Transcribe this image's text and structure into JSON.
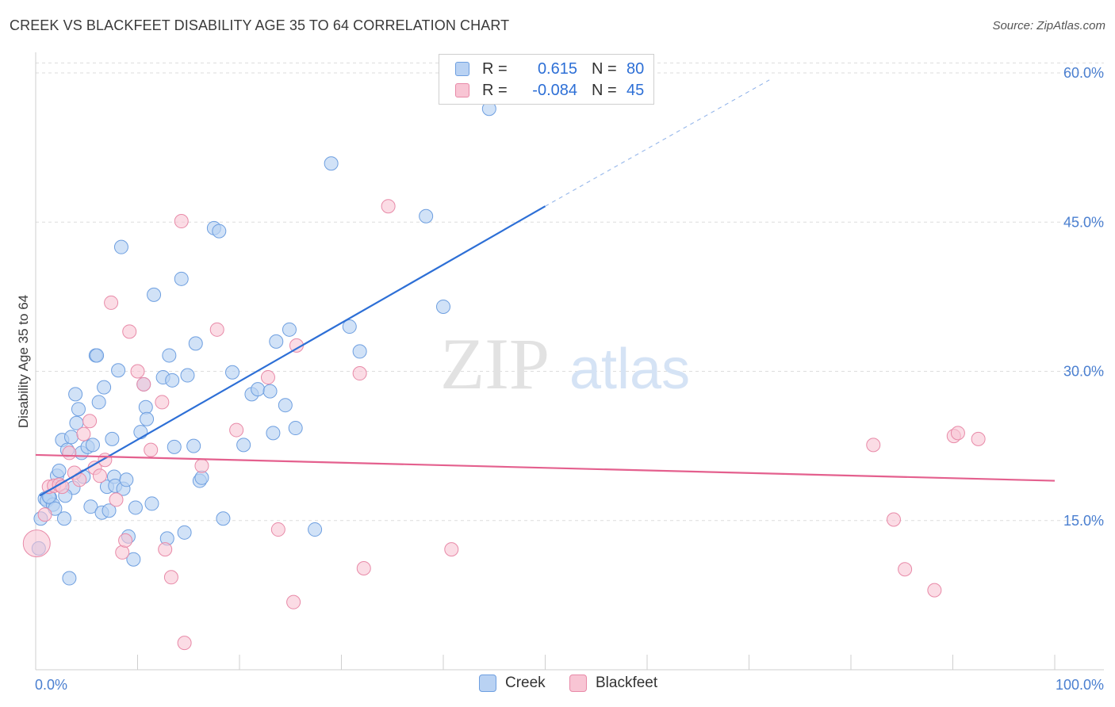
{
  "title": "CREEK VS BLACKFEET DISABILITY AGE 35 TO 64 CORRELATION CHART",
  "source": "Source: ZipAtlas.com",
  "watermark": {
    "zip": "ZIP",
    "atlas": "atlas"
  },
  "legend": {
    "rows": [
      {
        "r_label": "R =",
        "r_value": "0.615",
        "n_label": "N =",
        "n_value": "80"
      },
      {
        "r_label": "R =",
        "r_value": "-0.084",
        "n_label": "N =",
        "n_value": "45"
      }
    ]
  },
  "bottom_legend": [
    "Creek",
    "Blackfeet"
  ],
  "colors": {
    "creek_fill": "#b9d2f3",
    "creek_stroke": "#6e9fe0",
    "creek_line": "#2d6fd6",
    "blackfeet_fill": "#f8c5d4",
    "blackfeet_stroke": "#e88aa8",
    "blackfeet_line": "#e4608e",
    "tick_label": "#4a7fd0",
    "grid": "#dddddd"
  },
  "chart_data": {
    "type": "scatter",
    "title": "CREEK VS BLACKFEET DISABILITY AGE 35 TO 64 CORRELATION CHART",
    "xlabel": "",
    "ylabel": "Disability Age 35 to 64",
    "x_tick_labels": [
      "0.0%",
      "100.0%"
    ],
    "y_tick_labels": [
      "15.0%",
      "30.0%",
      "45.0%",
      "60.0%"
    ],
    "y_ticks": [
      15,
      30,
      45,
      60
    ],
    "xlim": [
      0,
      100
    ],
    "ylim": [
      0,
      61
    ],
    "grid": true,
    "series": [
      {
        "name": "Creek",
        "r": 0.615,
        "n": 80,
        "trend": {
          "x0": 0.4,
          "y0": 17.5,
          "x1": 50,
          "y1": 46.6,
          "dash_to_x": 72,
          "dash_to_y": 59.3
        },
        "points": [
          [
            0.3,
            12.2
          ],
          [
            0.5,
            15.2
          ],
          [
            0.9,
            17.2
          ],
          [
            1.1,
            17.0
          ],
          [
            1.4,
            17.3
          ],
          [
            1.7,
            16.6
          ],
          [
            1.9,
            16.2
          ],
          [
            2.1,
            19.5
          ],
          [
            2.3,
            20.0
          ],
          [
            2.6,
            23.1
          ],
          [
            2.8,
            15.2
          ],
          [
            3.1,
            22.1
          ],
          [
            3.3,
            9.2
          ],
          [
            3.5,
            23.4
          ],
          [
            3.7,
            18.3
          ],
          [
            3.9,
            27.7
          ],
          [
            4.0,
            24.8
          ],
          [
            4.2,
            26.2
          ],
          [
            4.5,
            21.8
          ],
          [
            4.7,
            19.4
          ],
          [
            5.1,
            22.4
          ],
          [
            5.4,
            16.4
          ],
          [
            5.6,
            22.6
          ],
          [
            5.9,
            31.6
          ],
          [
            6.2,
            26.9
          ],
          [
            6.5,
            15.8
          ],
          [
            6.7,
            28.4
          ],
          [
            7.0,
            18.4
          ],
          [
            7.2,
            16.0
          ],
          [
            7.5,
            23.2
          ],
          [
            7.7,
            19.4
          ],
          [
            7.8,
            18.5
          ],
          [
            8.1,
            30.1
          ],
          [
            8.4,
            42.5
          ],
          [
            8.6,
            18.2
          ],
          [
            8.9,
            19.1
          ],
          [
            9.1,
            13.4
          ],
          [
            9.6,
            11.1
          ],
          [
            9.8,
            16.3
          ],
          [
            10.3,
            23.9
          ],
          [
            10.6,
            28.7
          ],
          [
            10.8,
            26.4
          ],
          [
            10.9,
            25.2
          ],
          [
            11.4,
            16.7
          ],
          [
            11.6,
            37.7
          ],
          [
            12.5,
            29.4
          ],
          [
            12.9,
            13.2
          ],
          [
            13.1,
            31.6
          ],
          [
            13.6,
            22.4
          ],
          [
            14.3,
            39.3
          ],
          [
            14.6,
            13.8
          ],
          [
            14.9,
            29.6
          ],
          [
            15.5,
            22.5
          ],
          [
            15.7,
            32.8
          ],
          [
            16.1,
            19.0
          ],
          [
            16.3,
            19.3
          ],
          [
            17.5,
            44.4
          ],
          [
            18.0,
            44.1
          ],
          [
            18.4,
            15.2
          ],
          [
            19.3,
            29.9
          ],
          [
            20.4,
            22.6
          ],
          [
            21.2,
            27.7
          ],
          [
            21.8,
            28.2
          ],
          [
            23.0,
            28.0
          ],
          [
            23.3,
            23.8
          ],
          [
            23.6,
            33.0
          ],
          [
            24.5,
            26.6
          ],
          [
            24.9,
            34.2
          ],
          [
            25.5,
            24.3
          ],
          [
            27.4,
            14.1
          ],
          [
            29.0,
            50.9
          ],
          [
            30.8,
            34.5
          ],
          [
            31.8,
            32.0
          ],
          [
            38.3,
            45.6
          ],
          [
            40.0,
            36.5
          ],
          [
            44.5,
            56.4
          ],
          [
            1.3,
            17.4
          ],
          [
            6.0,
            31.6
          ],
          [
            2.9,
            17.5
          ],
          [
            13.4,
            29.1
          ]
        ]
      },
      {
        "name": "Blackfeet",
        "r": -0.084,
        "n": 45,
        "trend": {
          "x0": 0,
          "y0": 21.6,
          "x1": 100,
          "y1": 19.0
        },
        "points": [
          [
            0.1,
            12.7
          ],
          [
            0.9,
            15.6
          ],
          [
            1.3,
            18.4
          ],
          [
            1.8,
            18.5
          ],
          [
            2.3,
            18.6
          ],
          [
            2.6,
            18.4
          ],
          [
            3.3,
            21.8
          ],
          [
            3.8,
            19.8
          ],
          [
            4.3,
            19.1
          ],
          [
            4.7,
            23.7
          ],
          [
            5.3,
            25.0
          ],
          [
            5.8,
            20.3
          ],
          [
            6.3,
            19.5
          ],
          [
            6.8,
            21.1
          ],
          [
            7.4,
            36.9
          ],
          [
            7.9,
            17.1
          ],
          [
            8.5,
            11.8
          ],
          [
            8.8,
            13.0
          ],
          [
            9.2,
            34.0
          ],
          [
            10.0,
            30.0
          ],
          [
            10.6,
            28.7
          ],
          [
            11.3,
            22.1
          ],
          [
            12.4,
            26.9
          ],
          [
            12.7,
            12.1
          ],
          [
            13.3,
            9.3
          ],
          [
            14.3,
            45.1
          ],
          [
            14.6,
            2.7
          ],
          [
            16.3,
            20.5
          ],
          [
            17.8,
            34.2
          ],
          [
            19.7,
            24.1
          ],
          [
            22.8,
            29.4
          ],
          [
            23.8,
            14.1
          ],
          [
            25.6,
            32.6
          ],
          [
            25.3,
            6.8
          ],
          [
            31.8,
            29.8
          ],
          [
            32.2,
            10.2
          ],
          [
            34.6,
            46.6
          ],
          [
            40.8,
            12.1
          ],
          [
            82.2,
            22.6
          ],
          [
            84.2,
            15.1
          ],
          [
            85.3,
            10.1
          ],
          [
            88.2,
            8.0
          ],
          [
            90.1,
            23.5
          ],
          [
            90.5,
            23.8
          ],
          [
            92.5,
            23.2
          ]
        ]
      }
    ]
  }
}
